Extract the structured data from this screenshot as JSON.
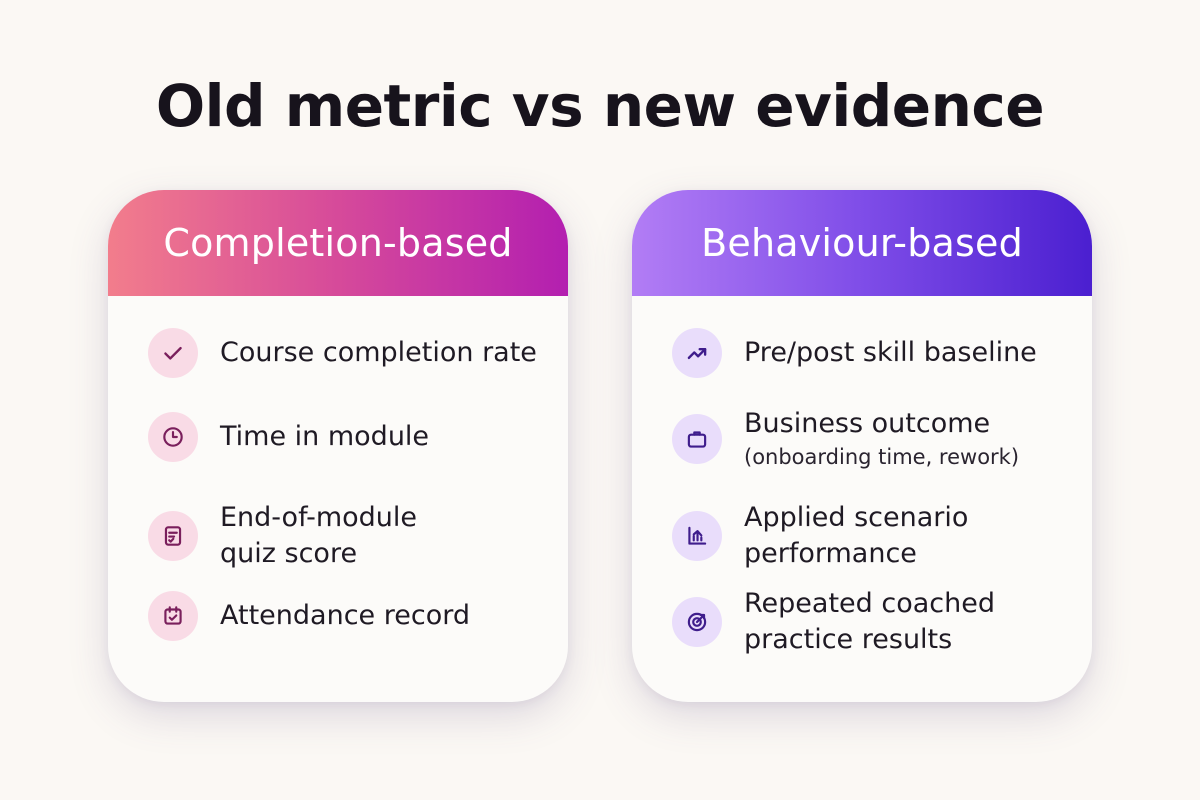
{
  "title": "Old metric vs new evidence",
  "colors": {
    "left_header_start": "#f27d8c",
    "left_header_end": "#b31fb0",
    "right_header_start": "#b27df5",
    "right_header_end": "#4b1fd0",
    "left_icon": "#7a1f5c",
    "right_icon": "#3f1d8c"
  },
  "left": {
    "header": "Completion-based",
    "items": [
      {
        "icon": "check-icon",
        "line1": "Course completion rate",
        "line2": ""
      },
      {
        "icon": "clock-icon",
        "line1": "Time in module",
        "line2": ""
      },
      {
        "icon": "quiz-doc-icon",
        "line1": "End-of-module",
        "line2": "quiz score"
      },
      {
        "icon": "calendar-check-icon",
        "line1": "Attendance record",
        "line2": ""
      }
    ]
  },
  "right": {
    "header": "Behaviour-based",
    "items": [
      {
        "icon": "trend-up-icon",
        "line1": "Pre/post skill baseline",
        "line2": ""
      },
      {
        "icon": "briefcase-icon",
        "line1": "Business outcome",
        "sub": "(onboarding time, rework)"
      },
      {
        "icon": "chart-icon",
        "line1": "Applied scenario",
        "line2": "performance"
      },
      {
        "icon": "target-icon",
        "line1": "Repeated coached",
        "line2": "practice results"
      }
    ]
  }
}
